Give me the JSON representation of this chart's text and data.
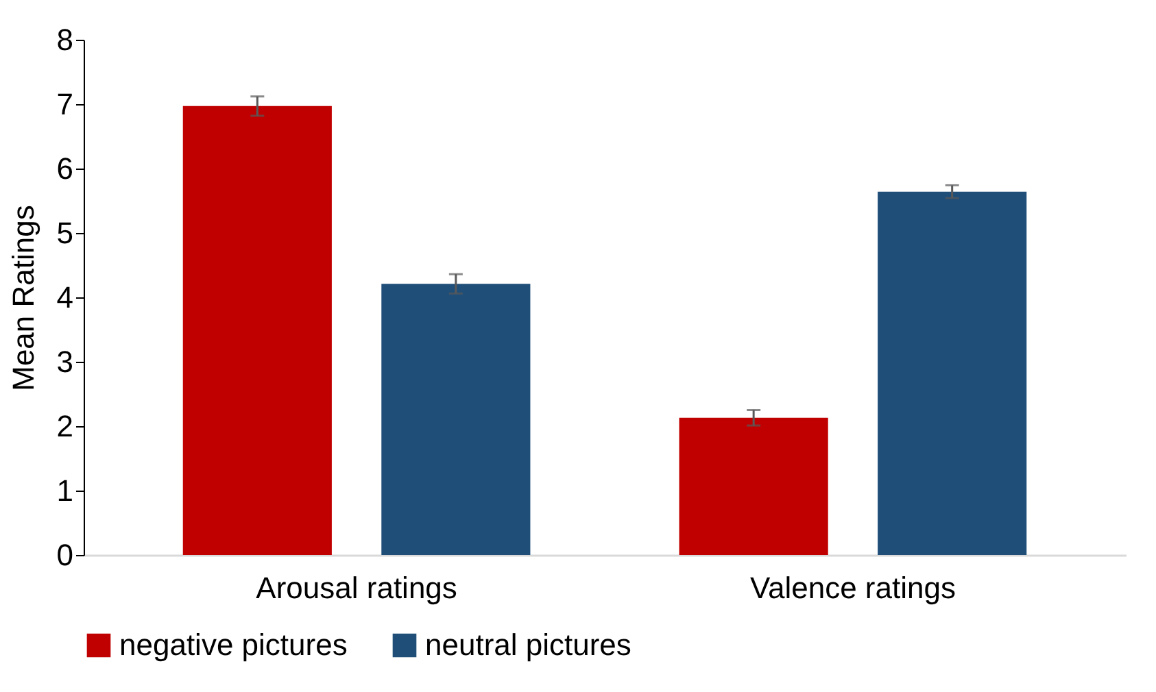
{
  "chart_data": {
    "type": "bar",
    "ylabel": "Mean Ratings",
    "categories": [
      "Arousal ratings",
      "Valence ratings"
    ],
    "series": [
      {
        "name": "negative pictures",
        "color": "#c00000",
        "values": [
          6.97,
          2.13
        ],
        "errors": [
          0.15,
          0.12
        ]
      },
      {
        "name": "neutral pictures",
        "color": "#1f4e79",
        "values": [
          4.21,
          5.64
        ],
        "errors": [
          0.15,
          0.1
        ]
      }
    ],
    "ylim": [
      0,
      8
    ],
    "yticks": [
      0,
      1,
      2,
      3,
      4,
      5,
      6,
      7,
      8
    ],
    "grid": false,
    "legend": "bottom"
  }
}
